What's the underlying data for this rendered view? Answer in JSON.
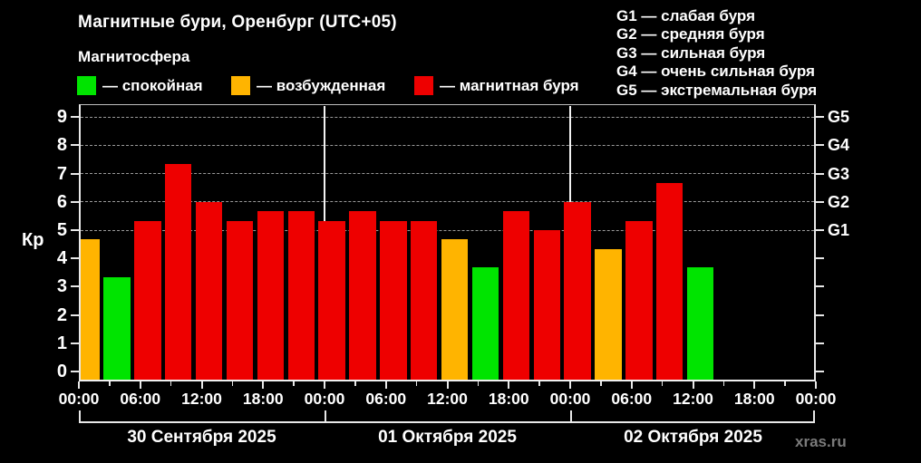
{
  "header": {
    "title": "Магнитные бури, Оренбург (UTC+05)",
    "subtitle": "Магнитосфера",
    "legend": [
      {
        "key": "quiet",
        "label": "— спокойная"
      },
      {
        "key": "excited",
        "label": "— возбужденная"
      },
      {
        "key": "storm",
        "label": "— магнитная буря"
      }
    ],
    "storm_scale": [
      "G1 — слабая буря",
      "G2 — средняя буря",
      "G3 — сильная буря",
      "G4 — очень сильная буря",
      "G5 — экстремальная буря"
    ]
  },
  "watermark": "xras.ru",
  "colors": {
    "quiet": "#00e400",
    "excited": "#ffb400",
    "storm": "#ee0000",
    "grid": "#9a9a9a",
    "axis": "#e8e8e8",
    "separator": "#f2f2f2",
    "text": "#ffffff",
    "watermark": "#7a7a7a",
    "background": "#000000"
  },
  "chart_data": {
    "type": "bar",
    "title": "Магнитные бури, Оренбург (UTC+05)",
    "ylabel": "Кр",
    "ylim": [
      0,
      9
    ],
    "yticks": [
      0,
      1,
      2,
      3,
      4,
      5,
      6,
      7,
      8,
      9
    ],
    "gridlines_kp": [
      5,
      6,
      7,
      8,
      9
    ],
    "grid_style": "dashed horizontal, Kp 5..9",
    "right_axis": [
      {
        "kp": 5,
        "label": "G1"
      },
      {
        "kp": 6,
        "label": "G2"
      },
      {
        "kp": 7,
        "label": "G3"
      },
      {
        "kp": 8,
        "label": "G4"
      },
      {
        "kp": 9,
        "label": "G5"
      }
    ],
    "hours_per_bar": 3,
    "x_tick_labels": [
      "00:00",
      "06:00",
      "12:00",
      "18:00",
      "00:00",
      "06:00",
      "12:00",
      "18:00",
      "00:00",
      "06:00",
      "12:00",
      "18:00",
      "00:00"
    ],
    "days": [
      {
        "date": "30 Сентября 2025",
        "values": [
          4.67,
          3.33,
          5.33,
          7.33,
          6.0,
          5.33,
          5.67,
          5.67
        ],
        "status": [
          "excited",
          "quiet",
          "storm",
          "storm",
          "storm",
          "storm",
          "storm",
          "storm"
        ]
      },
      {
        "date": "01 Октября 2025",
        "values": [
          5.33,
          5.67,
          5.33,
          5.33,
          4.67,
          3.67,
          5.67,
          5.0
        ],
        "status": [
          "storm",
          "storm",
          "storm",
          "storm",
          "excited",
          "quiet",
          "storm",
          "storm"
        ]
      },
      {
        "date": "02 Октября 2025",
        "values": [
          6.0,
          4.33,
          5.33,
          6.67,
          3.67
        ],
        "status": [
          "storm",
          "excited",
          "storm",
          "storm",
          "quiet"
        ]
      }
    ]
  }
}
